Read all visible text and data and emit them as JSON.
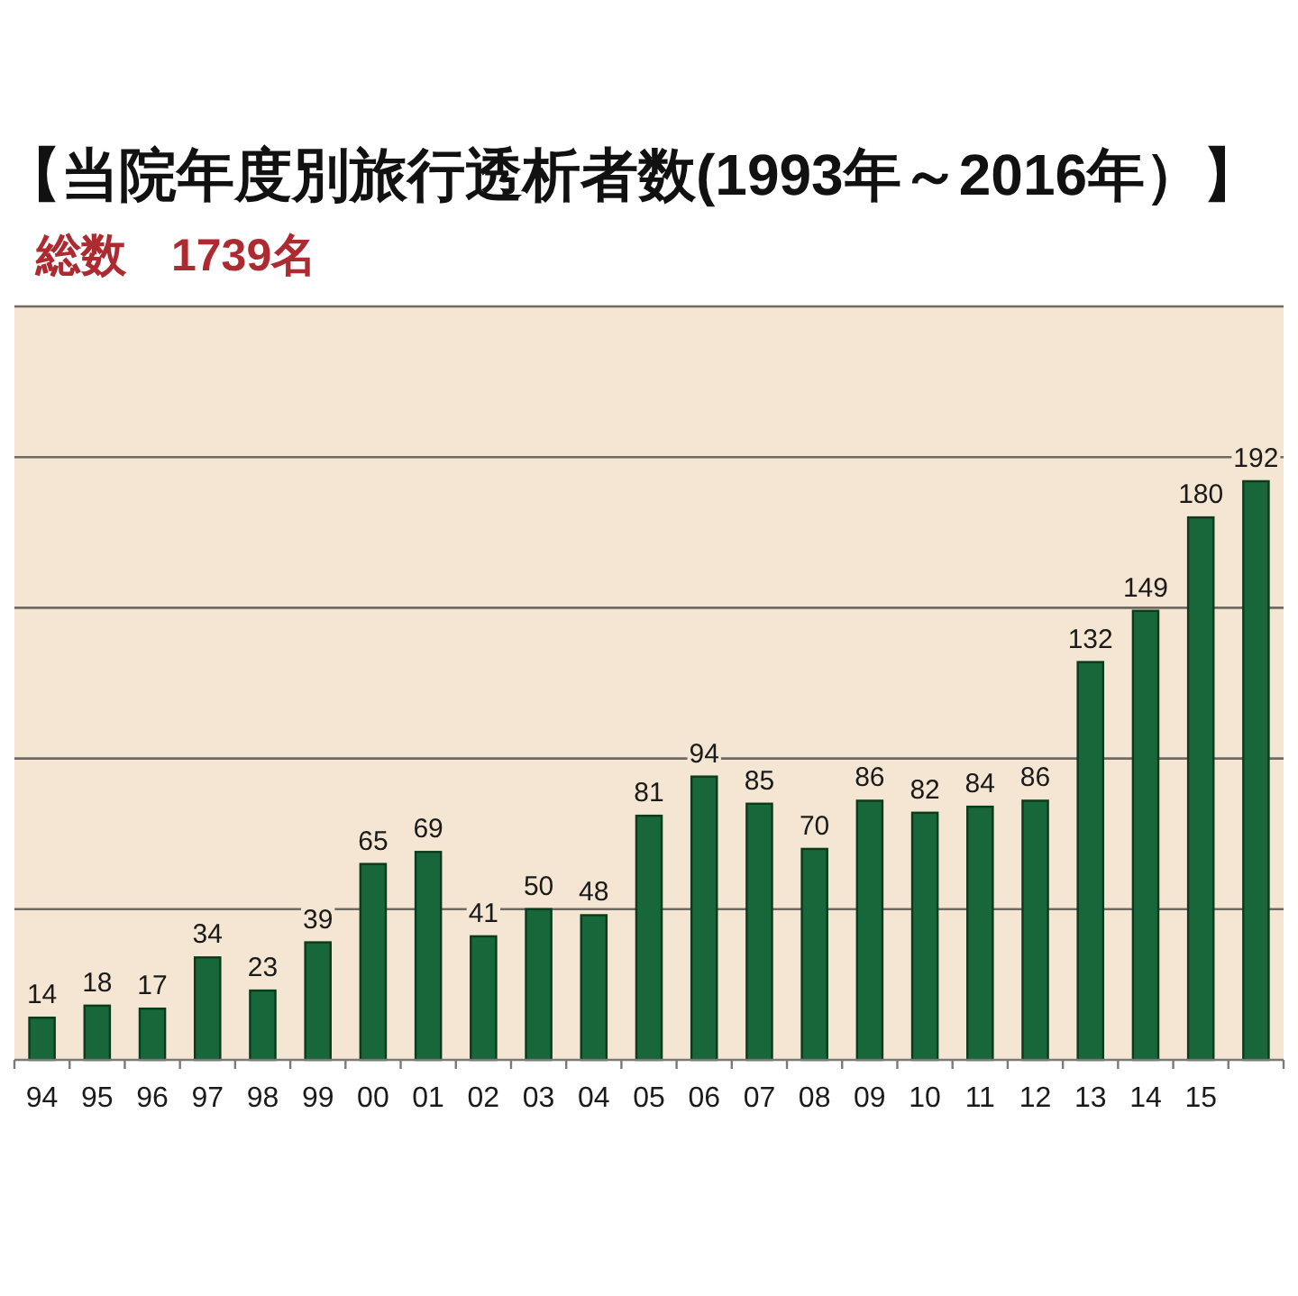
{
  "chart_data": {
    "type": "bar",
    "title": "【当院年度別旅行透析者数(1993年～2016年）】",
    "subtitle": "総数　1739名",
    "categories": [
      "94",
      "95",
      "96",
      "97",
      "98",
      "99",
      "00",
      "01",
      "02",
      "03",
      "04",
      "05",
      "06",
      "07",
      "08",
      "09",
      "10",
      "11",
      "12",
      "13",
      "14",
      "15",
      null
    ],
    "values": [
      14,
      18,
      17,
      34,
      23,
      39,
      65,
      69,
      41,
      50,
      48,
      81,
      94,
      85,
      70,
      86,
      82,
      84,
      86,
      132,
      149,
      180,
      192
    ],
    "color": "#17673a",
    "ylim": [
      0,
      250
    ],
    "yticks": [
      {
        "value": 50,
        "label": null
      },
      {
        "value": 100,
        "label": null
      },
      {
        "value": 150,
        "label": null
      },
      {
        "value": 200,
        "label": null
      },
      {
        "value": 250,
        "label": null
      }
    ],
    "grid": "y",
    "data_labels": true,
    "tick_labels": "x"
  }
}
